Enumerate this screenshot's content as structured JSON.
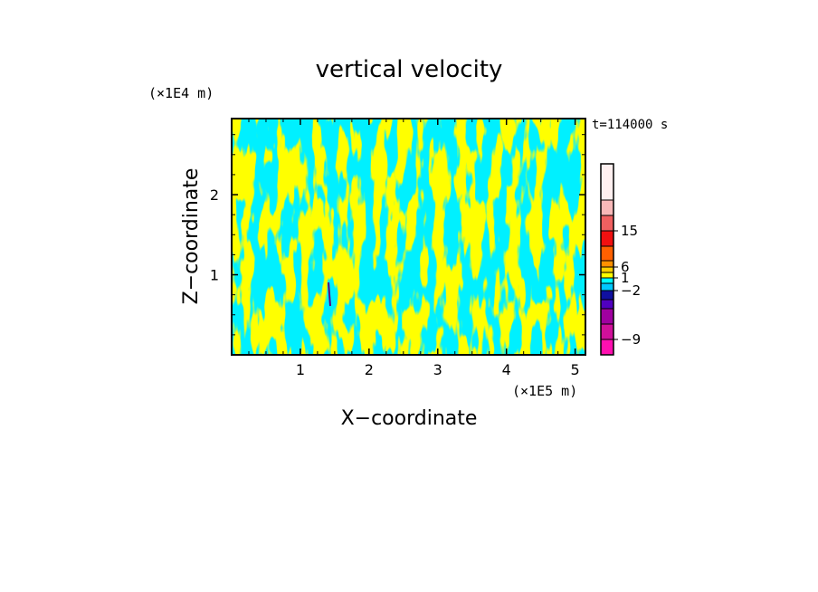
{
  "chart_data": {
    "type": "heatmap",
    "title": "vertical velocity",
    "xlabel": "X−coordinate",
    "ylabel": "Z−coordinate",
    "x_unit": "(×1E5 m)",
    "y_unit": "(×1E4 m)",
    "time_label": "t=114000 s",
    "xlim": [
      0,
      5.15
    ],
    "ylim": [
      0,
      2.95
    ],
    "x_ticks": [
      {
        "value": 1,
        "label": "1"
      },
      {
        "value": 2,
        "label": "2"
      },
      {
        "value": 3,
        "label": "3"
      },
      {
        "value": 4,
        "label": "4"
      },
      {
        "value": 5,
        "label": "5"
      }
    ],
    "y_ticks": [
      {
        "value": 1,
        "label": "1"
      },
      {
        "value": 2,
        "label": "2"
      }
    ],
    "legend": {
      "placement": "right",
      "levels": [
        {
          "color": "#ff10b0"
        },
        {
          "color": "#d0109a"
        },
        {
          "color": "#a000a0"
        },
        {
          "color": "#5000c0"
        },
        {
          "color": "#1010a0"
        },
        {
          "color": "#00c8ff"
        },
        {
          "color": "#00ffff"
        },
        {
          "color": "#ffff00"
        },
        {
          "color": "#ffd000"
        },
        {
          "color": "#ff9000"
        },
        {
          "color": "#ff6000"
        },
        {
          "color": "#f01010"
        },
        {
          "color": "#f06060"
        },
        {
          "color": "#f8b8b8"
        },
        {
          "color": "#fff0f0"
        }
      ],
      "labels": [
        {
          "text": "−9",
          "level": 1
        },
        {
          "text": "−2",
          "level": 5
        },
        {
          "text": "1",
          "level": 7
        },
        {
          "text": "6",
          "level": 9
        },
        {
          "text": "15",
          "level": 12
        }
      ]
    },
    "field_colors": {
      "negative": "#00f0ff",
      "positive": "#ffff00"
    }
  }
}
